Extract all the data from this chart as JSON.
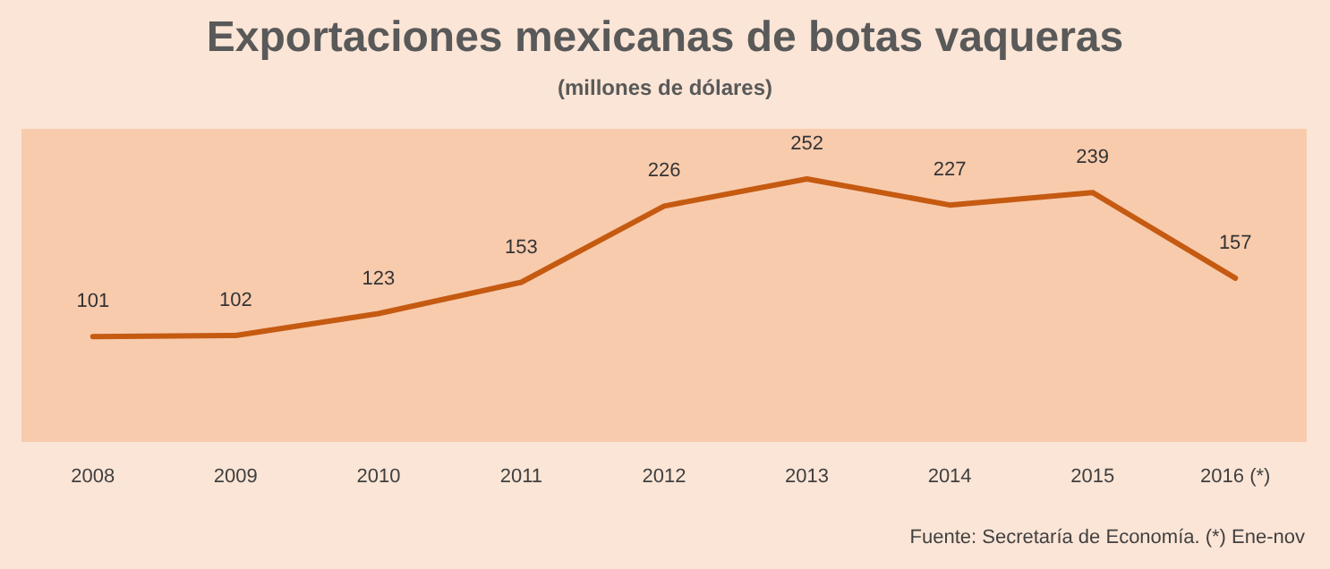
{
  "chart_data": {
    "type": "line",
    "title": "Exportaciones mexicanas de botas vaqueras",
    "subtitle": "(millones de dólares)",
    "categories": [
      "2008",
      "2009",
      "2010",
      "2011",
      "2012",
      "2013",
      "2014",
      "2015",
      "2016 (*)"
    ],
    "series": [
      {
        "color": "#c55a11",
        "values": [
          101,
          102,
          123,
          153,
          226,
          252,
          227,
          239,
          157
        ]
      }
    ],
    "data_labels": true,
    "grid": false,
    "marker": "none",
    "line_style": "solid",
    "annotations": [
      "Fuente: Secretaría de Economía. (*) Ene-nov"
    ]
  }
}
